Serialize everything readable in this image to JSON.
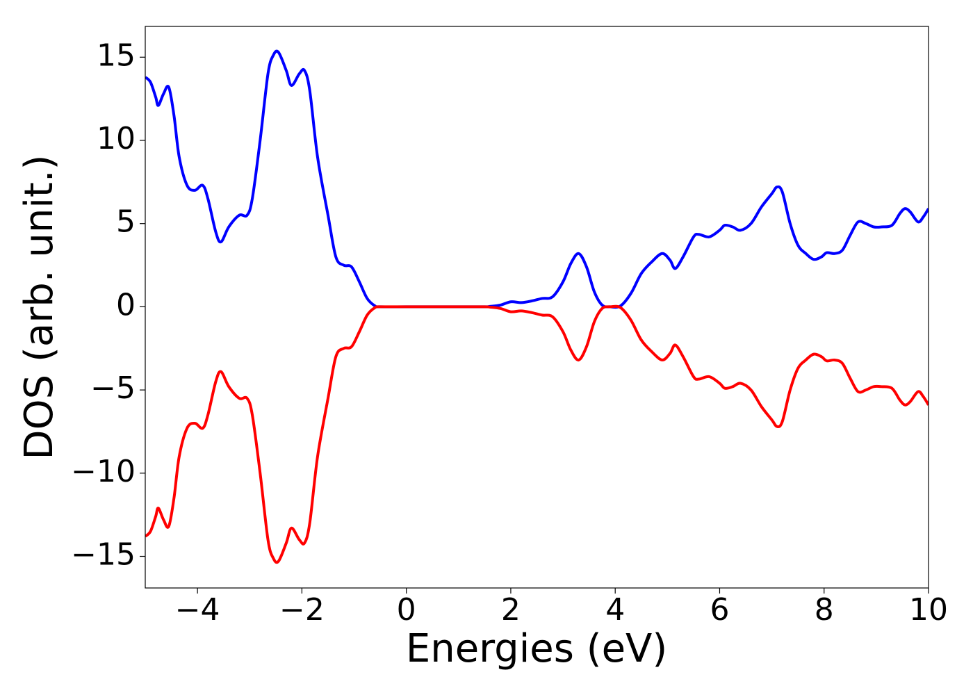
{
  "chart_data": {
    "type": "line",
    "xlabel": "Energies (eV)",
    "ylabel": "DOS (arb. unit.)",
    "x": [
      -5,
      -4.9,
      -4.8,
      -4.75,
      -4.65,
      -4.55,
      -4.45,
      -4.35,
      -4.2,
      -4.05,
      -3.9,
      -3.8,
      -3.65,
      -3.55,
      -3.4,
      -3.2,
      -3.05,
      -2.95,
      -2.8,
      -2.65,
      -2.55,
      -2.45,
      -2.3,
      -2.2,
      -2.05,
      -1.95,
      -1.85,
      -1.7,
      -1.5,
      -1.35,
      -1.2,
      -1.05,
      -0.9,
      -0.75,
      -0.6,
      -0.5,
      0,
      0.5,
      1,
      1.5,
      1.6,
      1.8,
      2,
      2.2,
      2.4,
      2.6,
      2.8,
      3,
      3.15,
      3.3,
      3.45,
      3.6,
      3.75,
      3.9,
      4.1,
      4.3,
      4.5,
      4.7,
      4.9,
      5.05,
      5.15,
      5.3,
      5.5,
      5.6,
      5.8,
      6,
      6.1,
      6.25,
      6.4,
      6.6,
      6.8,
      7,
      7.1,
      7.2,
      7.35,
      7.5,
      7.65,
      7.8,
      7.95,
      8.05,
      8.2,
      8.35,
      8.5,
      8.65,
      8.8,
      8.95,
      9.1,
      9.3,
      9.45,
      9.55,
      9.65,
      9.8,
      9.9,
      10
    ],
    "series": [
      {
        "color": "#0000ff",
        "values": [
          13.8,
          13.5,
          12.6,
          12.1,
          12.8,
          13.2,
          11.5,
          9.0,
          7.3,
          7.0,
          7.3,
          6.5,
          4.5,
          3.9,
          4.8,
          5.5,
          5.5,
          6.5,
          10,
          14,
          15.1,
          15.3,
          14.2,
          13.3,
          14,
          14.2,
          13,
          9,
          5.5,
          3,
          2.5,
          2.4,
          1.5,
          0.5,
          0.05,
          0,
          0,
          0,
          0,
          0,
          0.02,
          0.1,
          0.3,
          0.25,
          0.35,
          0.5,
          0.6,
          1.5,
          2.6,
          3.2,
          2.4,
          0.9,
          0.1,
          0,
          0.05,
          0.8,
          2.0,
          2.7,
          3.2,
          2.8,
          2.3,
          3.0,
          4.2,
          4.35,
          4.2,
          4.6,
          4.9,
          4.8,
          4.6,
          5.0,
          6.0,
          6.8,
          7.2,
          6.9,
          5.0,
          3.7,
          3.2,
          2.85,
          3.0,
          3.25,
          3.2,
          3.4,
          4.3,
          5.1,
          5.0,
          4.8,
          4.8,
          4.9,
          5.6,
          5.9,
          5.7,
          5.1,
          5.4,
          5.9
        ]
      },
      {
        "color": "#ff0000",
        "values": [
          -13.8,
          -13.5,
          -12.6,
          -12.1,
          -12.8,
          -13.2,
          -11.5,
          -9.0,
          -7.3,
          -7.0,
          -7.3,
          -6.5,
          -4.5,
          -3.9,
          -4.8,
          -5.5,
          -5.5,
          -6.5,
          -10,
          -14,
          -15.1,
          -15.3,
          -14.2,
          -13.3,
          -14,
          -14.2,
          -13,
          -9,
          -5.5,
          -3,
          -2.5,
          -2.4,
          -1.5,
          -0.5,
          -0.05,
          0,
          0,
          0,
          0,
          0,
          -0.02,
          -0.1,
          -0.3,
          -0.25,
          -0.35,
          -0.5,
          -0.6,
          -1.5,
          -2.6,
          -3.2,
          -2.4,
          -0.9,
          -0.1,
          0,
          -0.05,
          -0.8,
          -2.0,
          -2.7,
          -3.2,
          -2.8,
          -2.3,
          -3.0,
          -4.2,
          -4.35,
          -4.2,
          -4.6,
          -4.9,
          -4.8,
          -4.6,
          -5.0,
          -6.0,
          -6.8,
          -7.2,
          -6.9,
          -5.0,
          -3.7,
          -3.2,
          -2.85,
          -3.0,
          -3.25,
          -3.2,
          -3.4,
          -4.3,
          -5.1,
          -5.0,
          -4.8,
          -4.8,
          -4.9,
          -5.6,
          -5.9,
          -5.7,
          -5.1,
          -5.4,
          -5.9
        ]
      }
    ],
    "xlim": [
      -5,
      10
    ],
    "ylim": [
      -16.9,
      16.85
    ],
    "xticks": [
      {
        "value": -4,
        "label": "−4"
      },
      {
        "value": -2,
        "label": "−2"
      },
      0,
      2,
      4,
      6,
      8,
      10
    ],
    "yticks": [
      {
        "value": -15,
        "label": "−15"
      },
      {
        "value": -10,
        "label": "−10"
      },
      {
        "value": -5,
        "label": "−5"
      },
      0,
      5,
      10,
      15
    ],
    "grid": false
  }
}
